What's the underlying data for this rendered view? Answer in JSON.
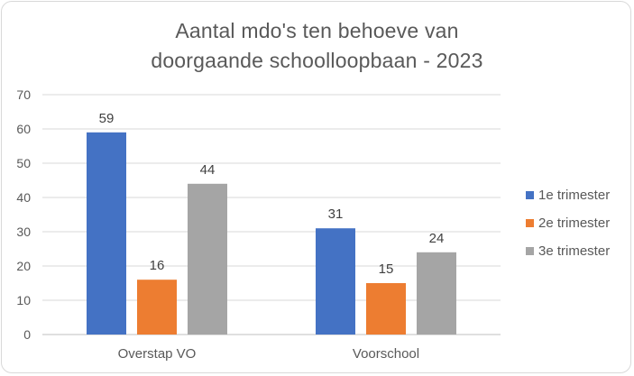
{
  "chart_data": {
    "type": "bar",
    "title": "Aantal mdo's ten behoeve van doorgaande schoolloopbaan - 2023",
    "title_lines": [
      "Aantal mdo's ten behoeve van",
      "doorgaande schoolloopbaan - 2023"
    ],
    "categories": [
      "Overstap VO",
      "Voorschool"
    ],
    "series": [
      {
        "name": "1e trimester",
        "values": [
          59,
          31
        ],
        "color": "#4472c4"
      },
      {
        "name": "2e trimester",
        "values": [
          16,
          15
        ],
        "color": "#ed7d31"
      },
      {
        "name": "3e trimester",
        "values": [
          44,
          24
        ],
        "color": "#a5a5a5"
      }
    ],
    "ylim": [
      0,
      70
    ],
    "yticks": [
      0,
      10,
      20,
      30,
      40,
      50,
      60,
      70
    ],
    "grid": true,
    "data_labels": true,
    "legend_position": "right"
  }
}
